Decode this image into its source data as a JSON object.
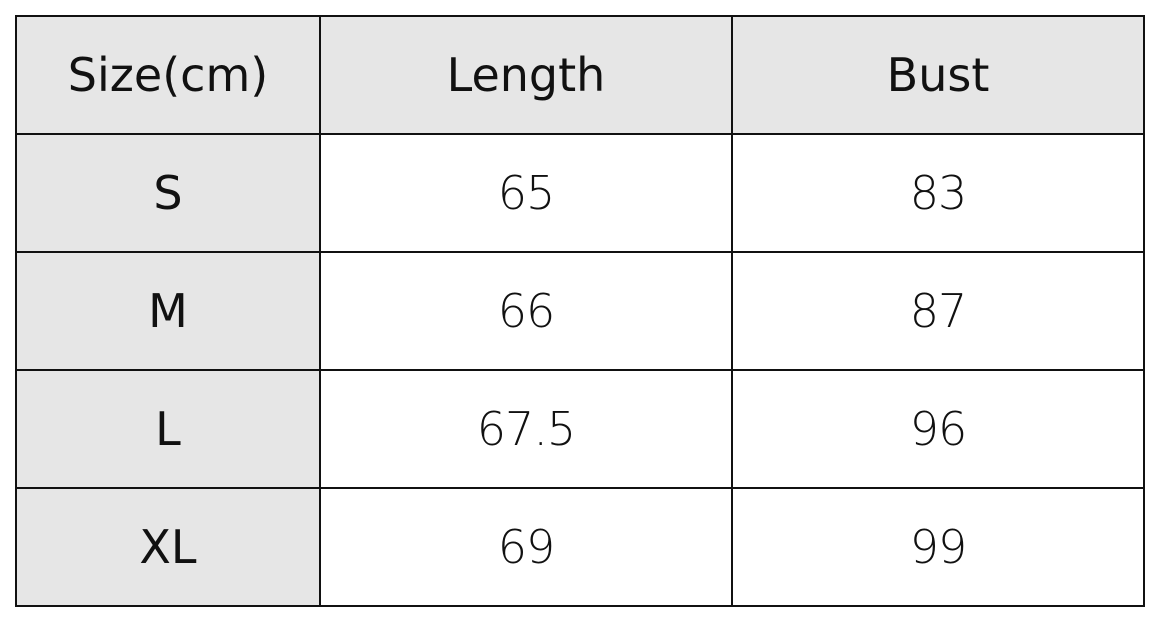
{
  "table": {
    "header": [
      "Size(cm)",
      "Length",
      "Bust"
    ],
    "rows": [
      [
        "S",
        "65",
        "83"
      ],
      [
        "M",
        "66",
        "87"
      ],
      [
        "L",
        "67.5",
        "96"
      ],
      [
        "XL",
        "69",
        "99"
      ]
    ]
  }
}
